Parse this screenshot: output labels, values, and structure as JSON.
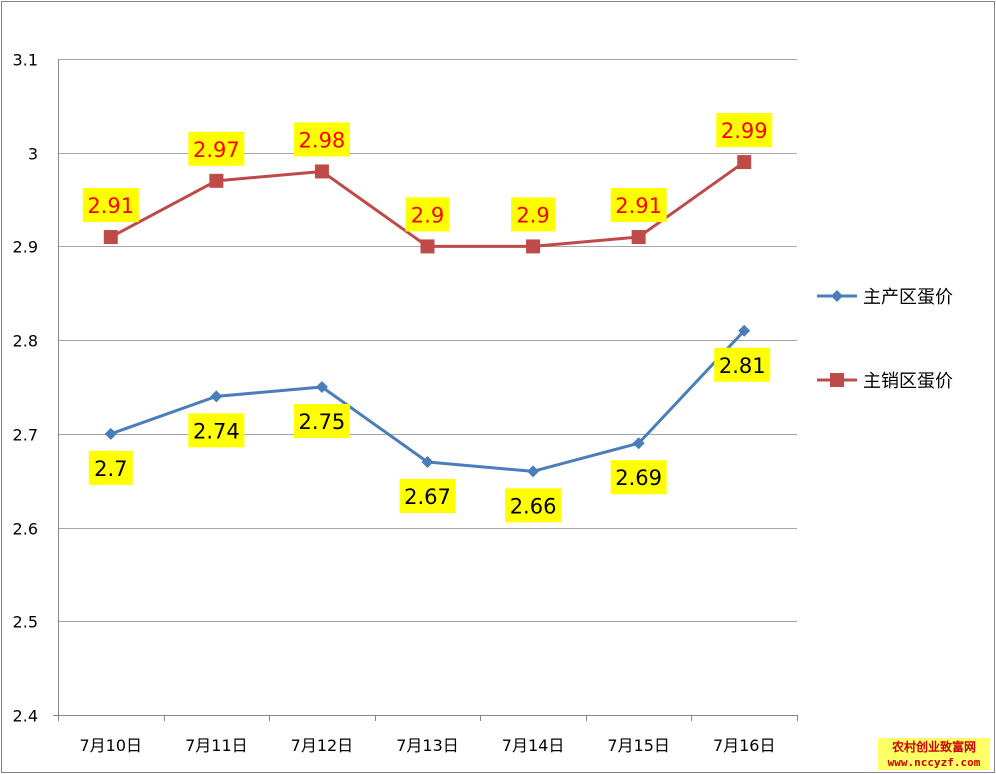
{
  "chart_data": {
    "type": "line",
    "categories": [
      "7月10日",
      "7月11日",
      "7月12日",
      "7月13日",
      "7月14日",
      "7月15日",
      "7月16日"
    ],
    "series": [
      {
        "name": "主产区蛋价",
        "values": [
          2.7,
          2.74,
          2.75,
          2.67,
          2.66,
          2.69,
          2.81
        ],
        "labels": [
          "2.7",
          "2.74",
          "2.75",
          "2.67",
          "2.66",
          "2.69",
          "2.81"
        ],
        "color": "#4a7ebb",
        "marker": "diamond",
        "label_color": "#000000",
        "label_bg": "#ffff00"
      },
      {
        "name": "主销区蛋价",
        "values": [
          2.91,
          2.97,
          2.98,
          2.9,
          2.9,
          2.91,
          2.99
        ],
        "labels": [
          "2.91",
          "2.97",
          "2.98",
          "2.9",
          "2.9",
          "2.91",
          "2.99"
        ],
        "color": "#be4b48",
        "marker": "square",
        "label_color": "#ff0000",
        "label_bg": "#ffff00"
      }
    ],
    "ylim": [
      2.4,
      3.1
    ],
    "yticks": [
      "2.4",
      "2.5",
      "2.6",
      "2.7",
      "2.8",
      "2.9",
      "3",
      "3.1"
    ],
    "grid": true,
    "legend": "right",
    "title": "",
    "xlabel": "",
    "ylabel": ""
  },
  "watermark": {
    "line1": "农村创业致富网",
    "line2": "www.nccyzf.com"
  }
}
